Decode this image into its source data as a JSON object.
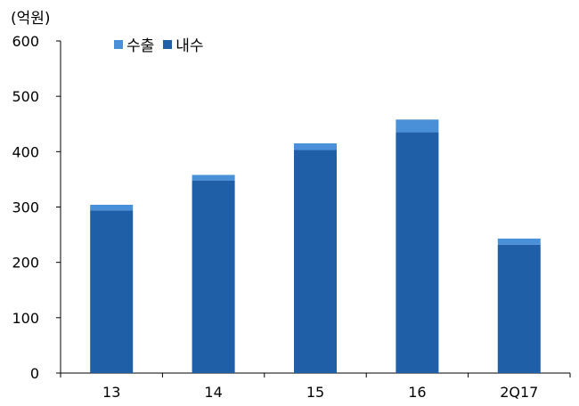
{
  "chart_data": {
    "type": "bar",
    "stacked": true,
    "unit_label": "(억원)",
    "categories": [
      "13",
      "14",
      "15",
      "16",
      "2Q17"
    ],
    "series": [
      {
        "name": "내수",
        "color": "#1f5fa8",
        "values": [
          294,
          348,
          403,
          435,
          232
        ]
      },
      {
        "name": "수출",
        "color": "#4a90d9",
        "values": [
          10,
          10,
          12,
          23,
          11
        ]
      }
    ],
    "legend_order": [
      "수출",
      "내수"
    ],
    "ylim": [
      0,
      600
    ],
    "yticks": [
      0,
      100,
      200,
      300,
      400,
      500,
      600
    ],
    "grid": false,
    "legend_position": "top-left"
  }
}
